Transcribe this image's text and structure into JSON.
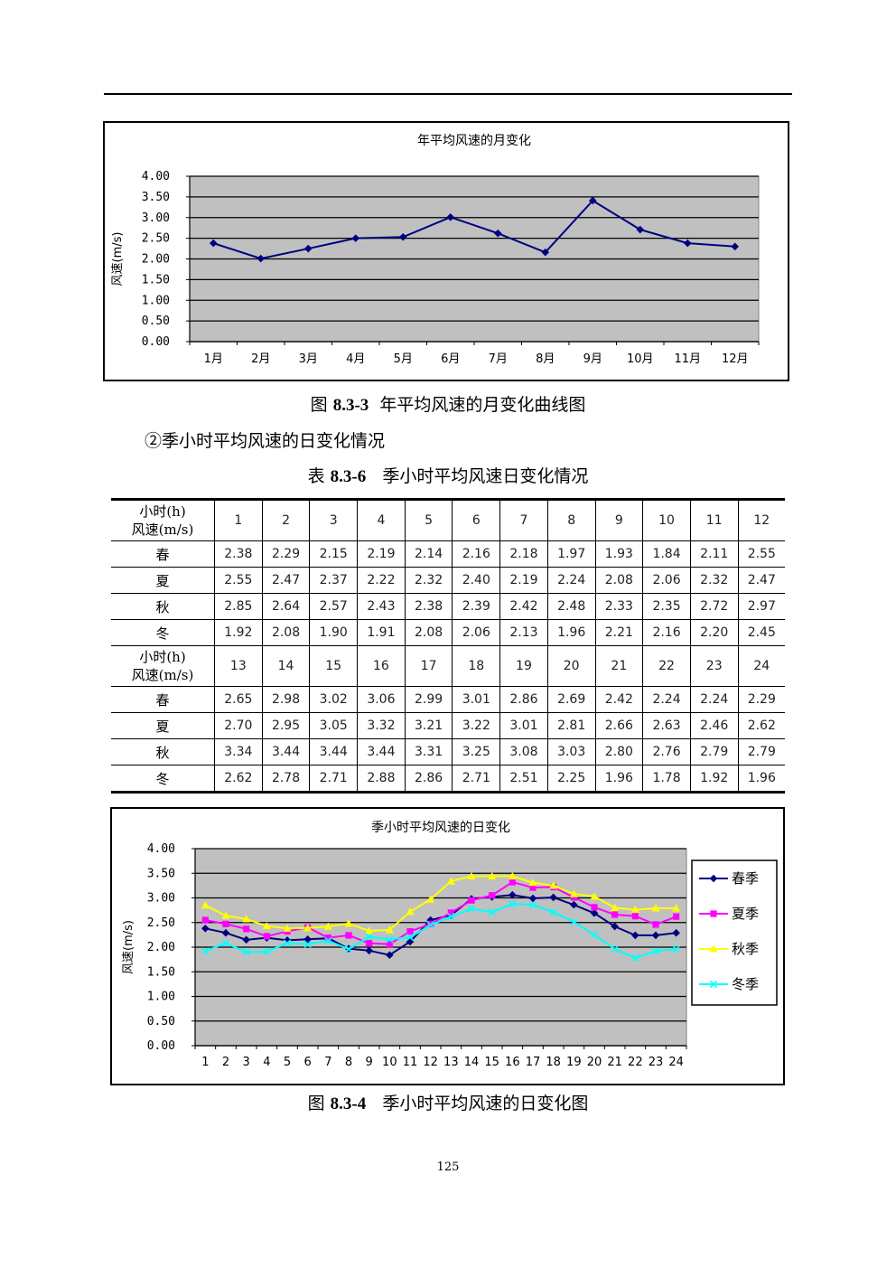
{
  "chart_data": [
    {
      "type": "line",
      "title": "年平均风速的月变化",
      "xlabel": "",
      "ylabel": "风速(m/s)",
      "categories": [
        "1月",
        "2月",
        "3月",
        "4月",
        "5月",
        "6月",
        "7月",
        "8月",
        "9月",
        "10月",
        "11月",
        "12月"
      ],
      "series": [
        {
          "values": [
            2.38,
            2.01,
            2.25,
            2.5,
            2.53,
            3.01,
            2.62,
            2.16,
            3.41,
            2.71,
            2.38,
            2.3
          ]
        }
      ],
      "ylim": [
        0,
        4
      ],
      "yticks": [
        "0.00",
        "0.50",
        "1.00",
        "1.50",
        "2.00",
        "2.50",
        "3.00",
        "3.50",
        "4.00"
      ],
      "grid": true,
      "colors": {
        "plot_bg": "#c0c0c0",
        "line": "#000080"
      }
    },
    {
      "type": "line",
      "title": "季小时平均风速的日变化",
      "xlabel": "",
      "ylabel": "风速(m/s)",
      "categories": [
        "1",
        "2",
        "3",
        "4",
        "5",
        "6",
        "7",
        "8",
        "9",
        "10",
        "11",
        "12",
        "13",
        "14",
        "15",
        "16",
        "17",
        "18",
        "19",
        "20",
        "21",
        "22",
        "23",
        "24"
      ],
      "series": [
        {
          "name": "春季",
          "color": "#000080",
          "marker": "diamond",
          "values": [
            2.38,
            2.29,
            2.15,
            2.19,
            2.14,
            2.16,
            2.18,
            1.97,
            1.93,
            1.84,
            2.11,
            2.55,
            2.65,
            2.98,
            3.02,
            3.06,
            2.99,
            3.01,
            2.86,
            2.69,
            2.42,
            2.24,
            2.24,
            2.29
          ]
        },
        {
          "name": "夏季",
          "color": "#ff00ff",
          "marker": "square",
          "values": [
            2.55,
            2.47,
            2.37,
            2.22,
            2.32,
            2.4,
            2.19,
            2.24,
            2.08,
            2.06,
            2.32,
            2.47,
            2.7,
            2.95,
            3.05,
            3.32,
            3.21,
            3.22,
            3.01,
            2.81,
            2.66,
            2.63,
            2.46,
            2.62
          ]
        },
        {
          "name": "秋季",
          "color": "#ffff00",
          "marker": "triangle",
          "values": [
            2.85,
            2.64,
            2.57,
            2.43,
            2.38,
            2.39,
            2.42,
            2.48,
            2.33,
            2.35,
            2.72,
            2.97,
            3.34,
            3.44,
            3.44,
            3.44,
            3.31,
            3.25,
            3.08,
            3.03,
            2.8,
            2.76,
            2.79,
            2.79
          ]
        },
        {
          "name": "冬季",
          "color": "#00ffff",
          "marker": "x",
          "values": [
            1.92,
            2.08,
            1.9,
            1.91,
            2.08,
            2.06,
            2.13,
            1.96,
            2.21,
            2.16,
            2.2,
            2.45,
            2.62,
            2.78,
            2.71,
            2.88,
            2.86,
            2.71,
            2.51,
            2.25,
            1.96,
            1.78,
            1.92,
            1.96
          ]
        }
      ],
      "ylim": [
        0,
        4
      ],
      "yticks": [
        "0.00",
        "0.50",
        "1.00",
        "1.50",
        "2.00",
        "2.50",
        "3.00",
        "3.50",
        "4.00"
      ],
      "grid": true,
      "legend": "right",
      "colors": {
        "plot_bg": "#c0c0c0"
      }
    }
  ],
  "captions": {
    "fig1_label": "图",
    "fig1_num": "8.3-3",
    "fig1_text": "年平均风速的月变化曲线图",
    "subheading": "②季小时平均风速的日变化情况",
    "table_label": "表",
    "table_num": "8.3-6",
    "table_text": "季小时平均风速日变化情况",
    "fig2_label": "图",
    "fig2_num": "8.3-4",
    "fig2_text": "季小时平均风速的日变化图"
  },
  "table": {
    "header_line1": "小时(h)",
    "header_line2": "风速(m/s)",
    "blocks": [
      {
        "hours": [
          "1",
          "2",
          "3",
          "4",
          "5",
          "6",
          "7",
          "8",
          "9",
          "10",
          "11",
          "12"
        ],
        "rows": [
          {
            "label": "春",
            "values": [
              "2.38",
              "2.29",
              "2.15",
              "2.19",
              "2.14",
              "2.16",
              "2.18",
              "1.97",
              "1.93",
              "1.84",
              "2.11",
              "2.55"
            ]
          },
          {
            "label": "夏",
            "values": [
              "2.55",
              "2.47",
              "2.37",
              "2.22",
              "2.32",
              "2.40",
              "2.19",
              "2.24",
              "2.08",
              "2.06",
              "2.32",
              "2.47"
            ]
          },
          {
            "label": "秋",
            "values": [
              "2.85",
              "2.64",
              "2.57",
              "2.43",
              "2.38",
              "2.39",
              "2.42",
              "2.48",
              "2.33",
              "2.35",
              "2.72",
              "2.97"
            ]
          },
          {
            "label": "冬",
            "values": [
              "1.92",
              "2.08",
              "1.90",
              "1.91",
              "2.08",
              "2.06",
              "2.13",
              "1.96",
              "2.21",
              "2.16",
              "2.20",
              "2.45"
            ]
          }
        ]
      },
      {
        "hours": [
          "13",
          "14",
          "15",
          "16",
          "17",
          "18",
          "19",
          "20",
          "21",
          "22",
          "23",
          "24"
        ],
        "rows": [
          {
            "label": "春",
            "values": [
              "2.65",
              "2.98",
              "3.02",
              "3.06",
              "2.99",
              "3.01",
              "2.86",
              "2.69",
              "2.42",
              "2.24",
              "2.24",
              "2.29"
            ]
          },
          {
            "label": "夏",
            "values": [
              "2.70",
              "2.95",
              "3.05",
              "3.32",
              "3.21",
              "3.22",
              "3.01",
              "2.81",
              "2.66",
              "2.63",
              "2.46",
              "2.62"
            ]
          },
          {
            "label": "秋",
            "values": [
              "3.34",
              "3.44",
              "3.44",
              "3.44",
              "3.31",
              "3.25",
              "3.08",
              "3.03",
              "2.80",
              "2.76",
              "2.79",
              "2.79"
            ]
          },
          {
            "label": "冬",
            "values": [
              "2.62",
              "2.78",
              "2.71",
              "2.88",
              "2.86",
              "2.71",
              "2.51",
              "2.25",
              "1.96",
              "1.78",
              "1.92",
              "1.96"
            ]
          }
        ]
      }
    ]
  },
  "page_number": "125"
}
